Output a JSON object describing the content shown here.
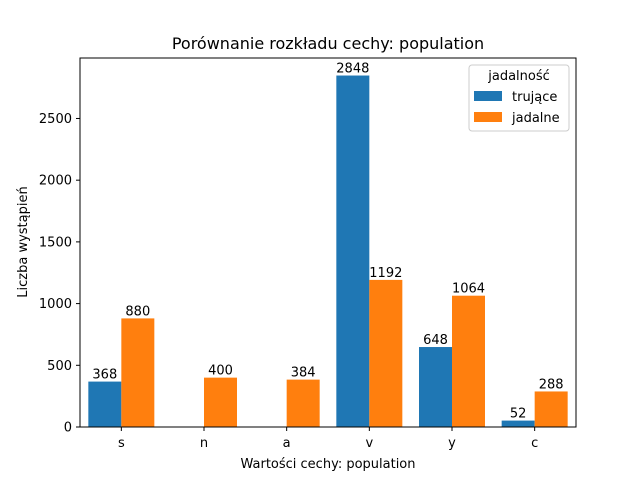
{
  "chart_data": {
    "type": "bar",
    "title": "Porównanie rozkładu cechy: population",
    "xlabel": "Wartości cechy: population",
    "ylabel": "Liczba wystąpień",
    "categories": [
      "s",
      "n",
      "a",
      "v",
      "y",
      "c"
    ],
    "series": [
      {
        "name": "trujące",
        "color": "#1f77b4",
        "values": [
          368,
          0,
          0,
          2848,
          648,
          52
        ]
      },
      {
        "name": "jadalne",
        "color": "#ff7f0e",
        "values": [
          880,
          400,
          384,
          1192,
          1064,
          288
        ]
      }
    ],
    "data_labels": [
      [
        "368",
        "",
        "",
        "2848",
        "648",
        "52"
      ],
      [
        "880",
        "400",
        "384",
        "1192",
        "1064",
        "288"
      ]
    ],
    "ylim": [
      0,
      2990
    ],
    "yticks": [
      0,
      500,
      1000,
      1500,
      2000,
      2500
    ],
    "grid": false,
    "legend": {
      "title": "jadalność",
      "placement": "top-right"
    }
  }
}
